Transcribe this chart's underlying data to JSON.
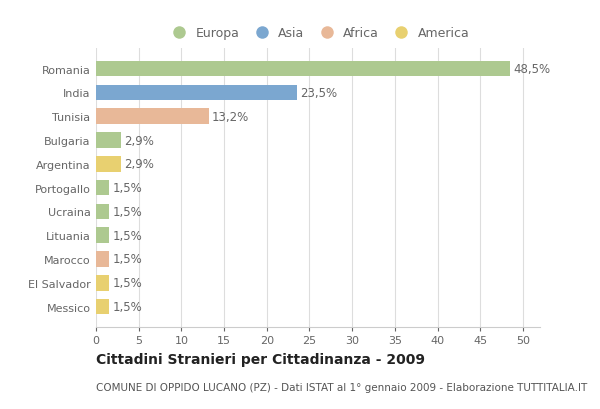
{
  "categories": [
    "Romania",
    "India",
    "Tunisia",
    "Bulgaria",
    "Argentina",
    "Portogallo",
    "Ucraina",
    "Lituania",
    "Marocco",
    "El Salvador",
    "Messico"
  ],
  "values": [
    48.5,
    23.5,
    13.2,
    2.9,
    2.9,
    1.5,
    1.5,
    1.5,
    1.5,
    1.5,
    1.5
  ],
  "labels": [
    "48,5%",
    "23,5%",
    "13,2%",
    "2,9%",
    "2,9%",
    "1,5%",
    "1,5%",
    "1,5%",
    "1,5%",
    "1,5%",
    "1,5%"
  ],
  "colors": [
    "#adc990",
    "#7ba7d0",
    "#e8b898",
    "#adc990",
    "#e8d070",
    "#adc990",
    "#adc990",
    "#adc990",
    "#e8b898",
    "#e8d070",
    "#e8d070"
  ],
  "legend_labels": [
    "Europa",
    "Asia",
    "Africa",
    "America"
  ],
  "legend_colors": [
    "#adc990",
    "#7ba7d0",
    "#e8b898",
    "#e8d070"
  ],
  "title": "Cittadini Stranieri per Cittadinanza - 2009",
  "subtitle": "COMUNE DI OPPIDO LUCANO (PZ) - Dati ISTAT al 1° gennaio 2009 - Elaborazione TUTTITALIA.IT",
  "xlim": [
    0,
    52
  ],
  "xticks": [
    0,
    5,
    10,
    15,
    20,
    25,
    30,
    35,
    40,
    45,
    50
  ],
  "background_color": "#ffffff",
  "plot_bg_color": "#ffffff",
  "grid_color": "#dddddd",
  "bar_height": 0.65,
  "label_fontsize": 8.5,
  "title_fontsize": 10,
  "subtitle_fontsize": 7.5,
  "tick_fontsize": 8,
  "legend_fontsize": 9
}
